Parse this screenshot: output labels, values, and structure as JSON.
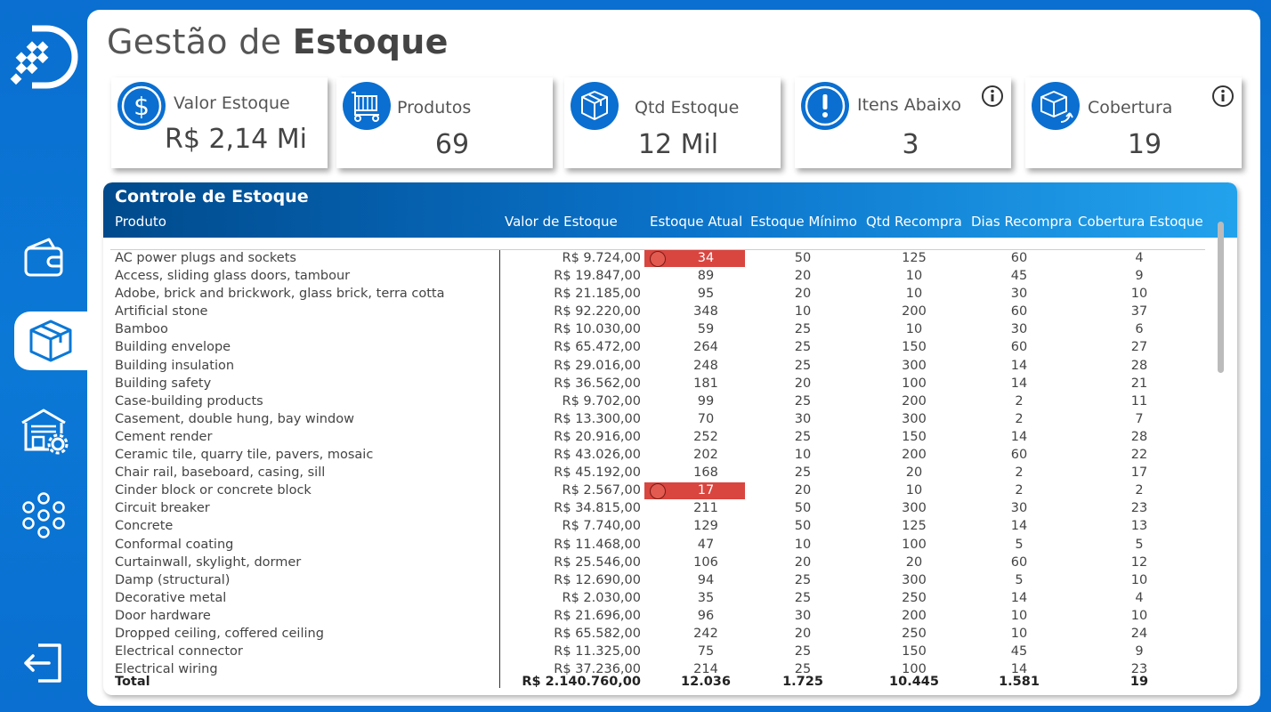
{
  "page": {
    "title_regular": "Gestão de",
    "title_bold": "Estoque"
  },
  "kpis": [
    {
      "label": "Valor Estoque",
      "value": "R$ 2,14 Mi",
      "icon": "dollar-icon"
    },
    {
      "label": "Produtos",
      "value": "69",
      "icon": "products-cart-icon"
    },
    {
      "label": "Qtd Estoque",
      "value": "12 Mil",
      "icon": "box-icon"
    },
    {
      "label": "Itens Abaixo",
      "value": "3",
      "icon": "exclamation-icon"
    },
    {
      "label": "Cobertura",
      "value": "19",
      "icon": "box-return-icon"
    }
  ],
  "table": {
    "title": "Controle de Estoque",
    "columns": [
      "Produto",
      "Valor de Estoque",
      "Estoque Atual",
      "Estoque Mínimo",
      "Qtd Recompra",
      "Dias Recompra",
      "Cobertura Estoque"
    ],
    "rows": [
      {
        "produto": "AC power plugs and sockets",
        "valor": "R$ 9.724,00",
        "atual": "34",
        "minimo": "50",
        "qtd_recompra": "125",
        "dias_recompra": "60",
        "cobertura": "4",
        "alert": true
      },
      {
        "produto": "Access, sliding glass doors, tambour",
        "valor": "R$ 19.847,00",
        "atual": "89",
        "minimo": "20",
        "qtd_recompra": "10",
        "dias_recompra": "45",
        "cobertura": "9",
        "alert": false
      },
      {
        "produto": "Adobe, brick and brickwork, glass brick, terra cotta",
        "valor": "R$ 21.185,00",
        "atual": "95",
        "minimo": "20",
        "qtd_recompra": "10",
        "dias_recompra": "30",
        "cobertura": "10",
        "alert": false
      },
      {
        "produto": "Artificial stone",
        "valor": "R$ 92.220,00",
        "atual": "348",
        "minimo": "10",
        "qtd_recompra": "200",
        "dias_recompra": "60",
        "cobertura": "37",
        "alert": false
      },
      {
        "produto": "Bamboo",
        "valor": "R$ 10.030,00",
        "atual": "59",
        "minimo": "25",
        "qtd_recompra": "10",
        "dias_recompra": "30",
        "cobertura": "6",
        "alert": false
      },
      {
        "produto": "Building envelope",
        "valor": "R$ 65.472,00",
        "atual": "264",
        "minimo": "25",
        "qtd_recompra": "150",
        "dias_recompra": "60",
        "cobertura": "27",
        "alert": false
      },
      {
        "produto": "Building insulation",
        "valor": "R$ 29.016,00",
        "atual": "248",
        "minimo": "25",
        "qtd_recompra": "300",
        "dias_recompra": "14",
        "cobertura": "28",
        "alert": false
      },
      {
        "produto": "Building safety",
        "valor": "R$ 36.562,00",
        "atual": "181",
        "minimo": "20",
        "qtd_recompra": "100",
        "dias_recompra": "14",
        "cobertura": "21",
        "alert": false
      },
      {
        "produto": "Case-building products",
        "valor": "R$ 9.702,00",
        "atual": "99",
        "minimo": "25",
        "qtd_recompra": "200",
        "dias_recompra": "2",
        "cobertura": "11",
        "alert": false
      },
      {
        "produto": "Casement, double hung, bay window",
        "valor": "R$ 13.300,00",
        "atual": "70",
        "minimo": "30",
        "qtd_recompra": "300",
        "dias_recompra": "2",
        "cobertura": "7",
        "alert": false
      },
      {
        "produto": "Cement render",
        "valor": "R$ 20.916,00",
        "atual": "252",
        "minimo": "25",
        "qtd_recompra": "150",
        "dias_recompra": "14",
        "cobertura": "28",
        "alert": false
      },
      {
        "produto": "Ceramic tile, quarry tile, pavers, mosaic",
        "valor": "R$ 43.026,00",
        "atual": "202",
        "minimo": "10",
        "qtd_recompra": "200",
        "dias_recompra": "60",
        "cobertura": "22",
        "alert": false
      },
      {
        "produto": "Chair rail, baseboard, casing, sill",
        "valor": "R$ 45.192,00",
        "atual": "168",
        "minimo": "25",
        "qtd_recompra": "20",
        "dias_recompra": "2",
        "cobertura": "17",
        "alert": false
      },
      {
        "produto": "Cinder block or concrete block",
        "valor": "R$ 2.567,00",
        "atual": "17",
        "minimo": "20",
        "qtd_recompra": "10",
        "dias_recompra": "2",
        "cobertura": "2",
        "alert": true
      },
      {
        "produto": "Circuit breaker",
        "valor": "R$ 34.815,00",
        "atual": "211",
        "minimo": "50",
        "qtd_recompra": "300",
        "dias_recompra": "30",
        "cobertura": "23",
        "alert": false
      },
      {
        "produto": "Concrete",
        "valor": "R$ 7.740,00",
        "atual": "129",
        "minimo": "50",
        "qtd_recompra": "125",
        "dias_recompra": "14",
        "cobertura": "13",
        "alert": false
      },
      {
        "produto": "Conformal coating",
        "valor": "R$ 11.468,00",
        "atual": "47",
        "minimo": "10",
        "qtd_recompra": "100",
        "dias_recompra": "5",
        "cobertura": "5",
        "alert": false
      },
      {
        "produto": "Curtainwall, skylight, dormer",
        "valor": "R$ 25.546,00",
        "atual": "106",
        "minimo": "20",
        "qtd_recompra": "20",
        "dias_recompra": "60",
        "cobertura": "12",
        "alert": false
      },
      {
        "produto": "Damp (structural)",
        "valor": "R$ 12.690,00",
        "atual": "94",
        "minimo": "25",
        "qtd_recompra": "300",
        "dias_recompra": "5",
        "cobertura": "10",
        "alert": false
      },
      {
        "produto": "Decorative metal",
        "valor": "R$ 2.030,00",
        "atual": "35",
        "minimo": "25",
        "qtd_recompra": "250",
        "dias_recompra": "14",
        "cobertura": "4",
        "alert": false
      },
      {
        "produto": "Door hardware",
        "valor": "R$ 21.696,00",
        "atual": "96",
        "minimo": "30",
        "qtd_recompra": "200",
        "dias_recompra": "10",
        "cobertura": "10",
        "alert": false
      },
      {
        "produto": "Dropped ceiling, coffered ceiling",
        "valor": "R$ 65.582,00",
        "atual": "242",
        "minimo": "20",
        "qtd_recompra": "250",
        "dias_recompra": "10",
        "cobertura": "24",
        "alert": false
      },
      {
        "produto": "Electrical connector",
        "valor": "R$ 11.325,00",
        "atual": "75",
        "minimo": "25",
        "qtd_recompra": "150",
        "dias_recompra": "45",
        "cobertura": "9",
        "alert": false
      },
      {
        "produto": "Electrical wiring",
        "valor": "R$ 37.236,00",
        "atual": "214",
        "minimo": "25",
        "qtd_recompra": "100",
        "dias_recompra": "14",
        "cobertura": "23",
        "alert": false
      }
    ],
    "total": {
      "label": "Total",
      "valor": "R$ 2.140.760,00",
      "atual": "12.036",
      "minimo": "1.725",
      "qtd_recompra": "10.445",
      "dias_recompra": "1.581",
      "cobertura": "19"
    }
  },
  "sidebar": {
    "items": [
      "wallet-icon",
      "box-icon",
      "warehouse-gear-icon",
      "network-dots-icon"
    ],
    "active": 1,
    "logout": "logout-icon"
  },
  "colors": {
    "accent": "#0a78d6",
    "alert": "#d9453f"
  }
}
